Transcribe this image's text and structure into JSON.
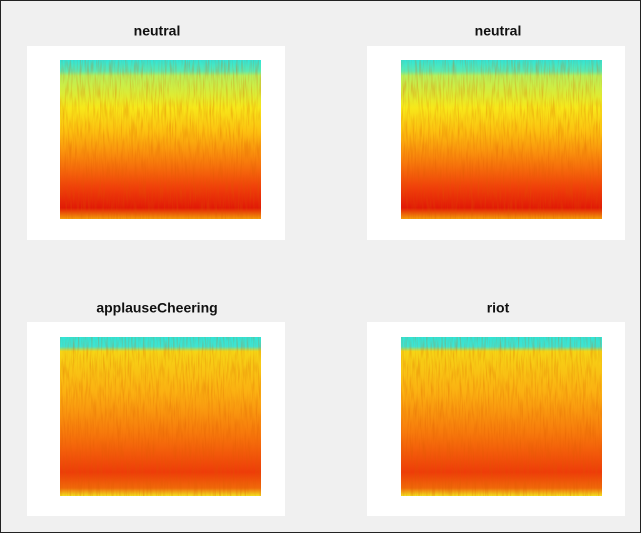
{
  "panels": [
    {
      "title": "neutral"
    },
    {
      "title": "neutral"
    },
    {
      "title": "applauseCheering"
    },
    {
      "title": "riot"
    }
  ]
}
